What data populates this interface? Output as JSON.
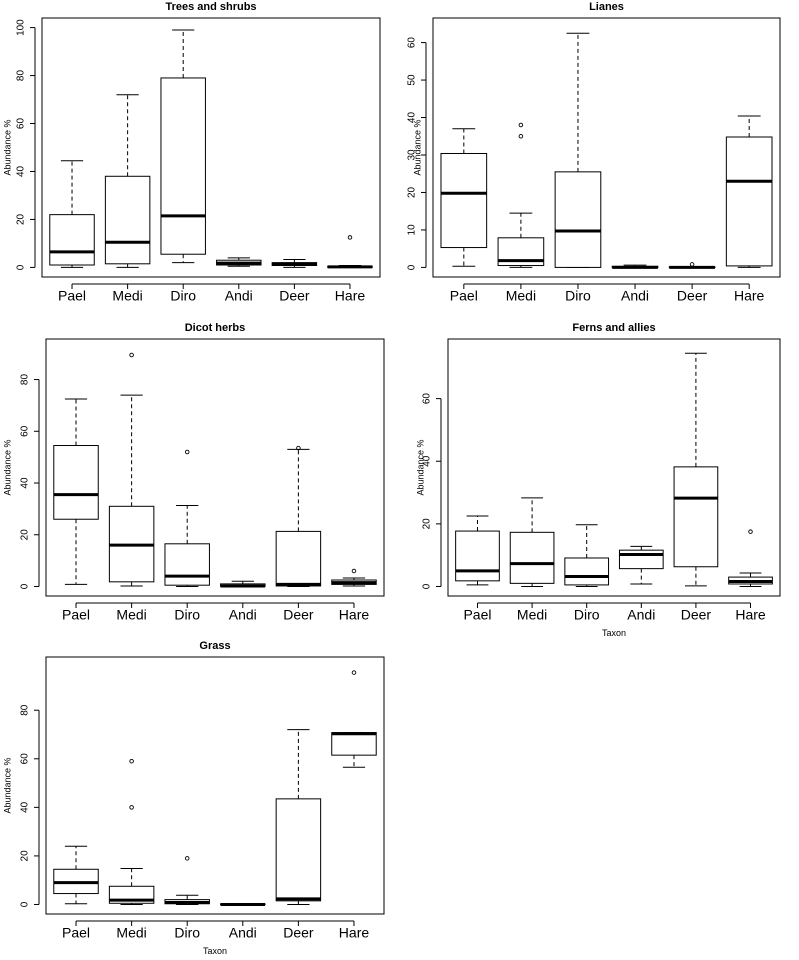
{
  "figure": {
    "xlabel_common": "Taxon",
    "ylabel_common": "Abundance %"
  },
  "chart_data": [
    {
      "type": "boxplot",
      "title": "Trees and shrubs",
      "ylabel": "Abundance %",
      "xlabel": "",
      "ylim": [
        0,
        100
      ],
      "yticks": [
        0,
        20,
        40,
        60,
        80,
        100
      ],
      "categories": [
        "Pael",
        "Medi",
        "Diro",
        "Andi",
        "Deer",
        "Hare"
      ],
      "boxes": [
        {
          "min": 0,
          "q1": 1,
          "median": 6.5,
          "q3": 22,
          "max": 44.5,
          "outliers": []
        },
        {
          "min": 0,
          "q1": 1.5,
          "median": 10.5,
          "q3": 38,
          "max": 72,
          "outliers": []
        },
        {
          "min": 2,
          "q1": 5.5,
          "median": 21.5,
          "q3": 79,
          "max": 99,
          "outliers": []
        },
        {
          "min": 0.5,
          "q1": 1,
          "median": 1.8,
          "q3": 3,
          "max": 4,
          "outliers": []
        },
        {
          "min": 0,
          "q1": 0.8,
          "median": 1.3,
          "q3": 2,
          "max": 3.3,
          "outliers": []
        },
        {
          "min": 0,
          "q1": 0,
          "median": 0.2,
          "q3": 0.5,
          "max": 0.8,
          "outliers": [
            12.5
          ]
        }
      ]
    },
    {
      "type": "boxplot",
      "title": "Lianes",
      "ylabel": "Abundance %",
      "xlabel": "",
      "ylim": [
        0,
        64
      ],
      "yticks": [
        0,
        10,
        20,
        30,
        40,
        50,
        60
      ],
      "categories": [
        "Pael",
        "Medi",
        "Diro",
        "Andi",
        "Deer",
        "Hare"
      ],
      "boxes": [
        {
          "min": 0.3,
          "q1": 5.3,
          "median": 19.8,
          "q3": 30.4,
          "max": 37,
          "outliers": []
        },
        {
          "min": 0,
          "q1": 0.5,
          "median": 1.8,
          "q3": 7.9,
          "max": 14.5,
          "outliers": [
            35,
            38
          ]
        },
        {
          "min": 0,
          "q1": 0,
          "median": 9.7,
          "q3": 25.5,
          "max": 62.5,
          "outliers": []
        },
        {
          "min": 0,
          "q1": 0,
          "median": 0,
          "q3": 0.3,
          "max": 0.6,
          "outliers": []
        },
        {
          "min": 0,
          "q1": 0,
          "median": 0,
          "q3": 0.1,
          "max": 0.2,
          "outliers": [
            0.8
          ]
        },
        {
          "min": 0,
          "q1": 0.4,
          "median": 23,
          "q3": 34.8,
          "max": 40.4,
          "outliers": []
        }
      ]
    },
    {
      "type": "boxplot",
      "title": "Dicot herbs",
      "ylabel": "Abundance %",
      "xlabel": "",
      "ylim": [
        0,
        92
      ],
      "yticks": [
        0,
        20,
        40,
        60,
        80
      ],
      "categories": [
        "Pael",
        "Medi",
        "Diro",
        "Andi",
        "Deer",
        "Hare"
      ],
      "boxes": [
        {
          "min": 0.8,
          "q1": 26,
          "median": 35.5,
          "q3": 54.5,
          "max": 72.5,
          "outliers": []
        },
        {
          "min": 0.2,
          "q1": 1.8,
          "median": 16,
          "q3": 31,
          "max": 74,
          "outliers": [
            89.5
          ]
        },
        {
          "min": 0,
          "q1": 0.5,
          "median": 4,
          "q3": 16.5,
          "max": 31.3,
          "outliers": [
            52
          ]
        },
        {
          "min": 0,
          "q1": 0,
          "median": 0.2,
          "q3": 1,
          "max": 2,
          "outliers": []
        },
        {
          "min": 0,
          "q1": 0.2,
          "median": 0.8,
          "q3": 21.3,
          "max": 53,
          "outliers": [
            53.5
          ]
        },
        {
          "min": 0.2,
          "q1": 0.8,
          "median": 1.5,
          "q3": 2.5,
          "max": 3.3,
          "outliers": [
            6
          ]
        }
      ]
    },
    {
      "type": "boxplot",
      "title": "Ferns and allies",
      "ylabel": "Abundance %",
      "xlabel": "Taxon",
      "ylim": [
        0,
        76
      ],
      "yticks": [
        0,
        20,
        40,
        60
      ],
      "categories": [
        "Pael",
        "Medi",
        "Diro",
        "Andi",
        "Deer",
        "Hare"
      ],
      "boxes": [
        {
          "min": 0.5,
          "q1": 1.8,
          "median": 5,
          "q3": 17.7,
          "max": 22.5,
          "outliers": []
        },
        {
          "min": 0,
          "q1": 1,
          "median": 7.3,
          "q3": 17.3,
          "max": 28.3,
          "outliers": []
        },
        {
          "min": 0,
          "q1": 0.5,
          "median": 3.2,
          "q3": 9.1,
          "max": 19.7,
          "outliers": []
        },
        {
          "min": 0.8,
          "q1": 5.7,
          "median": 10.2,
          "q3": 11.6,
          "max": 12.8,
          "outliers": []
        },
        {
          "min": 0.2,
          "q1": 6.3,
          "median": 28.2,
          "q3": 38.2,
          "max": 74.5,
          "outliers": []
        },
        {
          "min": 0,
          "q1": 0.8,
          "median": 1.6,
          "q3": 3,
          "max": 4.3,
          "outliers": [
            17.5
          ]
        }
      ]
    },
    {
      "type": "boxplot",
      "title": "Grass",
      "ylabel": "Abundance %",
      "xlabel": "Taxon",
      "ylim": [
        0,
        98
      ],
      "yticks": [
        0,
        20,
        40,
        60,
        80
      ],
      "categories": [
        "Pael",
        "Medi",
        "Diro",
        "Andi",
        "Deer",
        "Hare"
      ],
      "boxes": [
        {
          "min": 0.3,
          "q1": 4.5,
          "median": 9,
          "q3": 14.5,
          "max": 24,
          "outliers": []
        },
        {
          "min": 0,
          "q1": 0.5,
          "median": 1.8,
          "q3": 7.5,
          "max": 14.8,
          "outliers": [
            40,
            59
          ]
        },
        {
          "min": 0,
          "q1": 0.3,
          "median": 0.8,
          "q3": 2,
          "max": 3.8,
          "outliers": [
            19
          ]
        },
        {
          "min": 0,
          "q1": 0,
          "median": 0,
          "q3": 0.2,
          "max": 0.4,
          "outliers": []
        },
        {
          "min": 0,
          "q1": 1.5,
          "median": 2.3,
          "q3": 43.5,
          "max": 72,
          "outliers": []
        },
        {
          "min": 56.5,
          "q1": 61.5,
          "median": 70.3,
          "q3": 70.8,
          "max": 70.8,
          "outliers": [
            95.5
          ]
        }
      ]
    }
  ]
}
